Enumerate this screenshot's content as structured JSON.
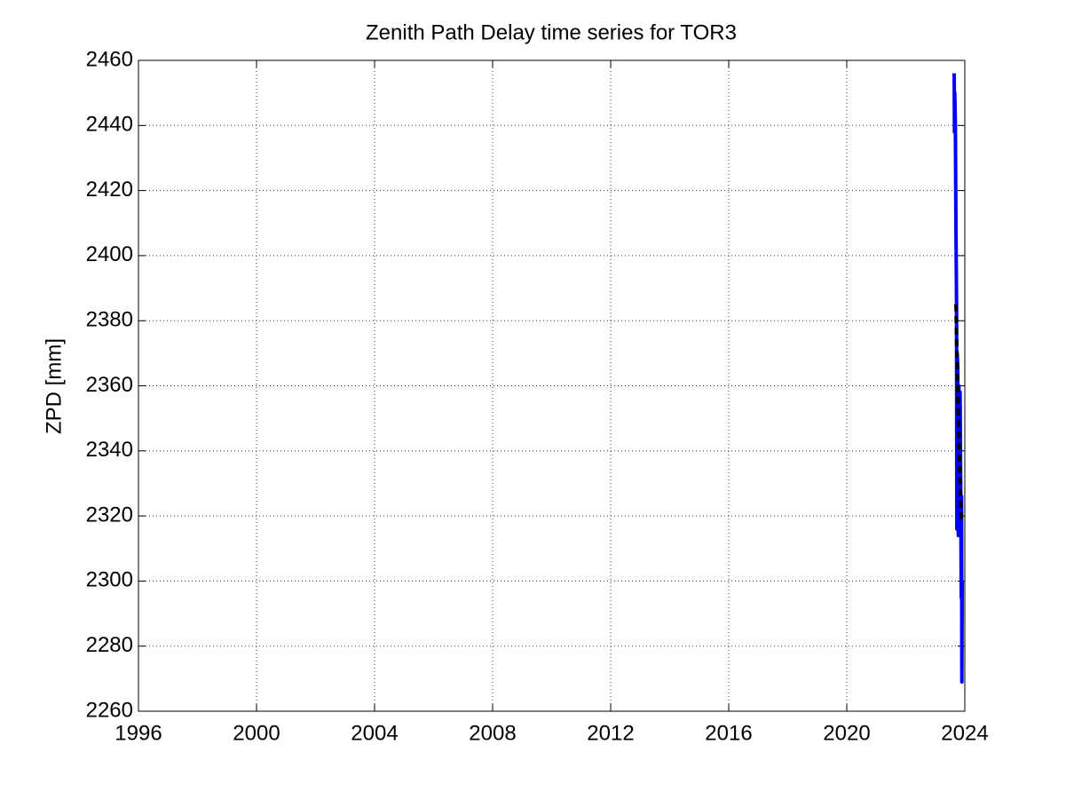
{
  "chart_data": {
    "type": "line",
    "title": "Zenith Path Delay time series for TOR3",
    "ylabel": "ZPD [mm]",
    "xlim": [
      1996,
      2024
    ],
    "xticks": [
      1996,
      2000,
      2004,
      2008,
      2012,
      2016,
      2020,
      2024
    ],
    "ylim": [
      2260,
      2460
    ],
    "yticks": [
      2260,
      2280,
      2300,
      2320,
      2340,
      2360,
      2380,
      2400,
      2420,
      2440,
      2460
    ],
    "grid": true,
    "series": [
      {
        "color": "#0000ff",
        "linestyle": "solid",
        "x": [
          2023.64,
          2023.65,
          2023.66,
          2023.68,
          2023.7,
          2023.71,
          2023.72,
          2023.73,
          2023.74,
          2023.76,
          2023.78,
          2023.8,
          2023.82,
          2023.84,
          2023.86,
          2023.88,
          2023.89,
          2023.9,
          2023.91
        ],
        "values": [
          2456,
          2438,
          2450,
          2440,
          2408,
          2397,
          2385,
          2316,
          2370,
          2366,
          2314,
          2360,
          2320,
          2358,
          2330,
          2295,
          2326,
          2269,
          2300
        ]
      },
      {
        "color": "#000000",
        "linestyle": "dashed",
        "x": [
          2023.7,
          2023.72,
          2023.76,
          2023.8,
          2023.84,
          2023.88
        ],
        "values": [
          2385,
          2375,
          2360,
          2345,
          2330,
          2318
        ]
      }
    ]
  }
}
